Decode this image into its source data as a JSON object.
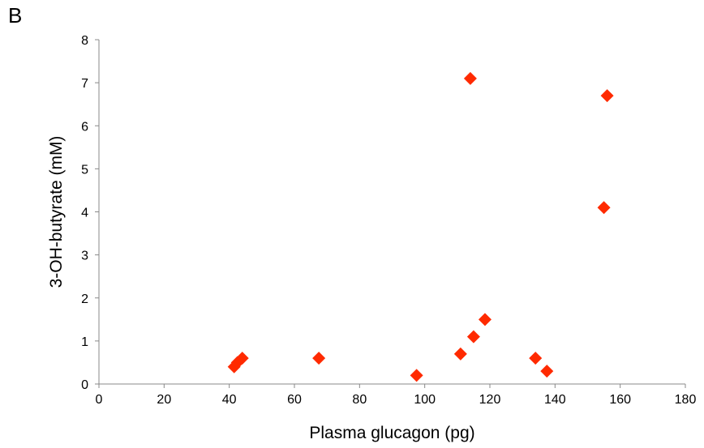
{
  "panel_label": "B",
  "chart_data": {
    "type": "scatter",
    "title": "",
    "xlabel": "Plasma glucagon (pg)",
    "ylabel": "3-OH-butyrate (mM)",
    "xlim": [
      0,
      180
    ],
    "ylim": [
      0,
      8
    ],
    "x_ticks": [
      0,
      20,
      40,
      60,
      80,
      100,
      120,
      140,
      160,
      180
    ],
    "y_ticks": [
      0,
      1,
      2,
      3,
      4,
      5,
      6,
      7,
      8
    ],
    "grid": false,
    "legend": "none",
    "marker": "diamond",
    "marker_color": "#ff2a00",
    "series": [
      {
        "points": [
          {
            "x": 41.5,
            "y": 0.4
          },
          {
            "x": 42.5,
            "y": 0.5
          },
          {
            "x": 44.0,
            "y": 0.6
          },
          {
            "x": 67.5,
            "y": 0.6
          },
          {
            "x": 97.5,
            "y": 0.2
          },
          {
            "x": 111.0,
            "y": 0.7
          },
          {
            "x": 114.0,
            "y": 7.1
          },
          {
            "x": 115.0,
            "y": 1.1
          },
          {
            "x": 118.5,
            "y": 1.5
          },
          {
            "x": 134.0,
            "y": 0.6
          },
          {
            "x": 137.5,
            "y": 0.3
          },
          {
            "x": 155.0,
            "y": 4.1
          },
          {
            "x": 156.0,
            "y": 6.7
          }
        ]
      }
    ]
  }
}
